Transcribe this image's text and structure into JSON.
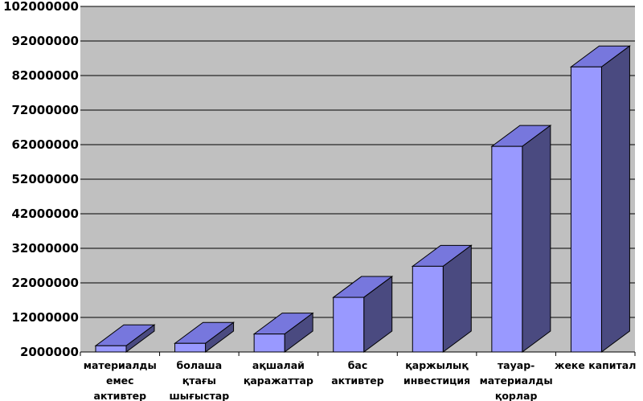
{
  "chart_data": {
    "type": "bar",
    "style": "3d",
    "title": "",
    "xlabel": "",
    "ylabel": "",
    "categories": [
      [
        "материалды",
        "емес",
        "активтер"
      ],
      [
        "болаша",
        "қтағы",
        "шығыстар"
      ],
      [
        "ақшалай",
        "қаражаттар"
      ],
      [
        "бас",
        "активтер"
      ],
      [
        "қаржылық",
        "инвестиция"
      ],
      [
        "тауар-",
        "материалды",
        "қорлар"
      ],
      [
        "жеке капитал"
      ]
    ],
    "values": [
      3800000,
      4500000,
      7200000,
      17800000,
      26800000,
      61500000,
      84500000
    ],
    "ylim": [
      2000000,
      102000000
    ],
    "yticks": [
      2000000,
      12000000,
      22000000,
      32000000,
      42000000,
      52000000,
      62000000,
      72000000,
      82000000,
      92000000,
      102000000
    ],
    "ytick_labels": [
      "2000000",
      "12000000",
      "22000000",
      "32000000",
      "42000000",
      "52000000",
      "62000000",
      "72000000",
      "82000000",
      "92000000",
      "102000000"
    ],
    "grid": true,
    "colors": {
      "plot_background": "#c0c0c0",
      "bar_front": "#9999ff",
      "bar_top": "#7777dd",
      "bar_side": "#4a4a80",
      "grid": "#000000"
    }
  }
}
